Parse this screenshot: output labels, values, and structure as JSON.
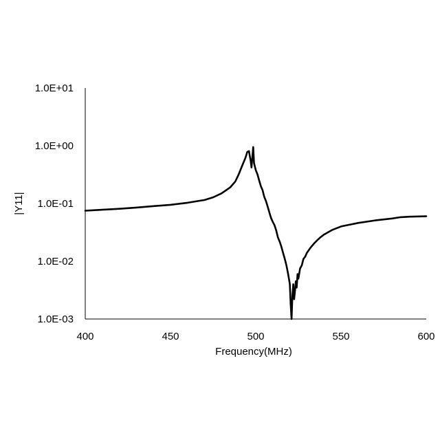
{
  "chart_data": {
    "type": "line",
    "title": "",
    "xlabel": "Frequency(MHz)",
    "ylabel": "|Y11|",
    "xlim": [
      400,
      600
    ],
    "ylim": [
      0.001,
      10
    ],
    "yscale": "log",
    "grid": false,
    "x_ticks": [
      400,
      450,
      500,
      550,
      600
    ],
    "x_tick_labels": [
      "400",
      "450",
      "500",
      "550",
      "600"
    ],
    "y_ticks": [
      0.001,
      0.01,
      0.1,
      1,
      10
    ],
    "y_tick_labels": [
      "1.0E-03",
      "1.0E-02",
      "1.0E-01",
      "1.0E+00",
      "1.0E+01"
    ],
    "line_color": "#000000",
    "series": [
      {
        "x": [
          400,
          410,
          420,
          430,
          440,
          450,
          460,
          470,
          475,
          480,
          485,
          488,
          490,
          492,
          494,
          495,
          496,
          497,
          497.5,
          498,
          498.5,
          499,
          500,
          501,
          502,
          503,
          504,
          505,
          506,
          507,
          508,
          509,
          510,
          511,
          512,
          513,
          514,
          515,
          516,
          517,
          518,
          519,
          520,
          520.5,
          521,
          521.5,
          522,
          522.5,
          523,
          523.5,
          524,
          524.5,
          525,
          526,
          527,
          528,
          529,
          530,
          532,
          534,
          536,
          538,
          540,
          545,
          550,
          560,
          570,
          580,
          585,
          590,
          600
        ],
        "y": [
          0.075,
          0.078,
          0.081,
          0.085,
          0.09,
          0.095,
          0.103,
          0.115,
          0.128,
          0.15,
          0.19,
          0.24,
          0.32,
          0.45,
          0.62,
          0.78,
          0.81,
          0.55,
          0.42,
          0.62,
          0.95,
          0.5,
          0.38,
          0.32,
          0.25,
          0.2,
          0.17,
          0.13,
          0.11,
          0.088,
          0.07,
          0.056,
          0.048,
          0.042,
          0.034,
          0.026,
          0.022,
          0.018,
          0.014,
          0.011,
          0.0085,
          0.006,
          0.004,
          0.0018,
          0.001,
          0.0025,
          0.004,
          0.0022,
          0.003,
          0.0045,
          0.0035,
          0.006,
          0.005,
          0.0075,
          0.0085,
          0.011,
          0.012,
          0.014,
          0.017,
          0.02,
          0.023,
          0.026,
          0.029,
          0.035,
          0.04,
          0.046,
          0.051,
          0.055,
          0.058,
          0.059,
          0.06
        ]
      }
    ]
  }
}
